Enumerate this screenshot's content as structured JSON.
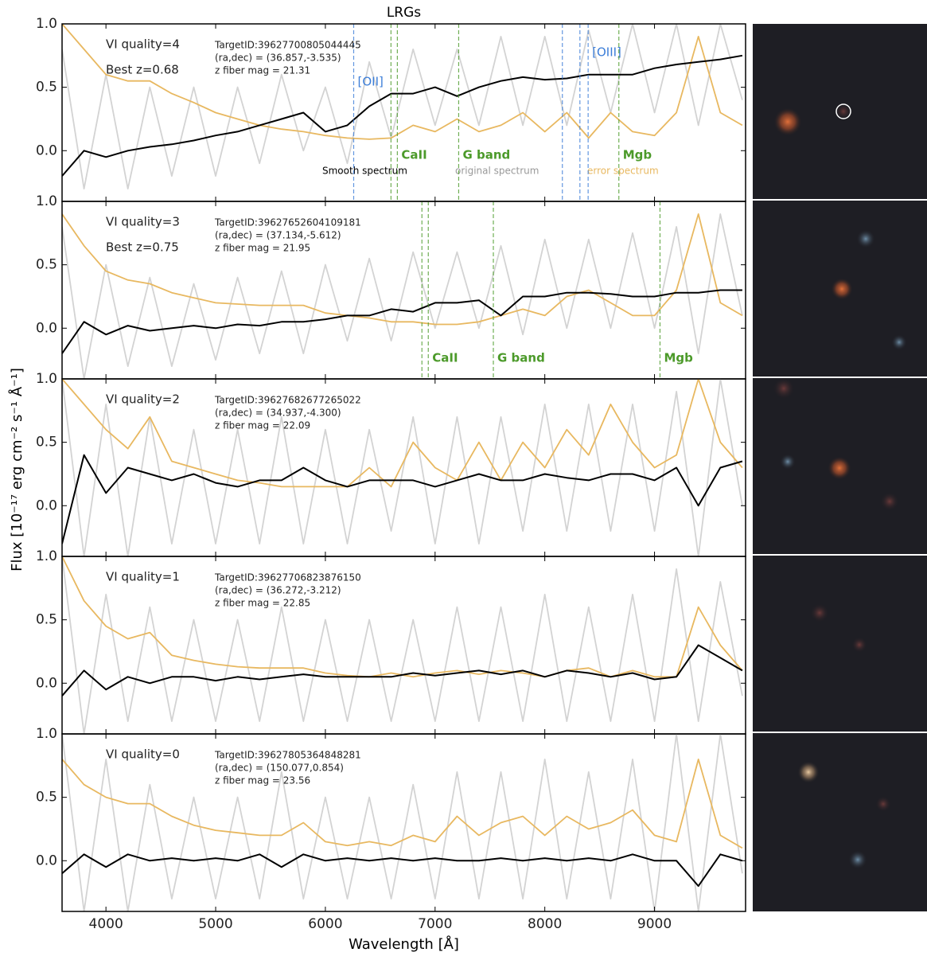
{
  "chart_data": [
    {
      "type": "line",
      "title": "LRGs",
      "labels": [
        "VI quality=4",
        "Best z=0.68"
      ],
      "target": [
        "TargetID:39627700805044445",
        "(ra,dec) = (36.857,-3.535)",
        "z fiber mag = 21.31"
      ],
      "x": [
        3600,
        3800,
        4000,
        4200,
        4400,
        4600,
        4800,
        5000,
        5200,
        5400,
        5600,
        5800,
        6000,
        6200,
        6400,
        6600,
        6800,
        7000,
        7200,
        7400,
        7600,
        7800,
        8000,
        8200,
        8400,
        8600,
        8800,
        9000,
        9200,
        9400,
        9600,
        9800
      ],
      "xlim": [
        3600,
        9830
      ],
      "xticks": [
        4000,
        5000,
        6000,
        7000,
        8000,
        9000
      ],
      "ylim": [
        -0.4,
        1.0
      ],
      "yticks": [
        {
          "value": 0,
          "label": "0.0"
        },
        {
          "value": 0.5,
          "label": "0.5"
        },
        {
          "value": 1,
          "label": "1.0"
        }
      ],
      "series": [
        {
          "name": "original spectrum",
          "color": "#d3d3d3",
          "values": [
            0.8,
            -0.3,
            0.6,
            -0.3,
            0.5,
            -0.2,
            0.5,
            -0.2,
            0.5,
            -0.1,
            0.6,
            0.0,
            0.5,
            -0.1,
            0.7,
            0.1,
            0.8,
            0.2,
            0.8,
            0.2,
            0.9,
            0.2,
            0.9,
            0.2,
            0.95,
            0.3,
            1.0,
            0.3,
            1.0,
            0.2,
            1.0,
            0.4
          ]
        },
        {
          "name": "error spectrum",
          "color": "#e8b860",
          "values": [
            1.0,
            0.8,
            0.6,
            0.55,
            0.55,
            0.45,
            0.38,
            0.3,
            0.25,
            0.2,
            0.17,
            0.15,
            0.12,
            0.1,
            0.09,
            0.1,
            0.2,
            0.15,
            0.25,
            0.15,
            0.2,
            0.3,
            0.15,
            0.3,
            0.1,
            0.3,
            0.15,
            0.12,
            0.3,
            0.9,
            0.3,
            0.2
          ]
        },
        {
          "name": "Smooth spectrum",
          "color": "#000000",
          "values": [
            -0.2,
            0.0,
            -0.05,
            0.0,
            0.03,
            0.05,
            0.08,
            0.12,
            0.15,
            0.2,
            0.25,
            0.3,
            0.15,
            0.2,
            0.35,
            0.45,
            0.45,
            0.5,
            0.43,
            0.5,
            0.55,
            0.58,
            0.56,
            0.57,
            0.6,
            0.6,
            0.6,
            0.65,
            0.68,
            0.7,
            0.72,
            0.75
          ]
        }
      ],
      "lines": [
        {
          "label": "[OII]",
          "color": "#3b7dd8",
          "x": [
            6258
          ]
        },
        {
          "label": "CaII",
          "color": "#4c9a2a",
          "x": [
            6598,
            6656
          ]
        },
        {
          "label": "G band",
          "color": "#4c9a2a",
          "x": [
            7215
          ]
        },
        {
          "label": "[OIII]",
          "color": "#3b7dd8",
          "x": [
            8160,
            8320,
            8395
          ]
        },
        {
          "label": "Mgb",
          "color": "#4c9a2a",
          "x": [
            8675
          ]
        }
      ]
    },
    {
      "type": "line",
      "labels": [
        "VI quality=3",
        "Best z=0.75"
      ],
      "target": [
        "TargetID:39627652604109181",
        "(ra,dec) = (37.134,-5.612)",
        "z fiber mag = 21.95"
      ],
      "x": [
        3600,
        3800,
        4000,
        4200,
        4400,
        4600,
        4800,
        5000,
        5200,
        5400,
        5600,
        5800,
        6000,
        6200,
        6400,
        6600,
        6800,
        7000,
        7200,
        7400,
        7600,
        7800,
        8000,
        8200,
        8400,
        8600,
        8800,
        9000,
        9200,
        9400,
        9600,
        9800
      ],
      "xlim": [
        3600,
        9830
      ],
      "xticks": [
        4000,
        5000,
        6000,
        7000,
        8000,
        9000
      ],
      "ylim": [
        -0.4,
        1.0
      ],
      "yticks": [
        {
          "value": 0,
          "label": "0.0"
        },
        {
          "value": 0.5,
          "label": "0.5"
        },
        {
          "value": 1,
          "label": "1.0"
        }
      ],
      "series": [
        {
          "color": "#d3d3d3",
          "values": [
            0.8,
            -0.4,
            0.5,
            -0.3,
            0.4,
            -0.3,
            0.35,
            -0.25,
            0.4,
            -0.2,
            0.45,
            -0.2,
            0.5,
            -0.1,
            0.55,
            -0.1,
            0.6,
            0.0,
            0.6,
            0.0,
            0.65,
            -0.05,
            0.7,
            0.0,
            0.7,
            0.0,
            0.75,
            0.0,
            0.8,
            -0.2,
            0.9,
            0.1
          ]
        },
        {
          "color": "#e8b860",
          "values": [
            0.9,
            0.65,
            0.45,
            0.38,
            0.35,
            0.28,
            0.24,
            0.2,
            0.19,
            0.18,
            0.18,
            0.18,
            0.12,
            0.1,
            0.08,
            0.05,
            0.05,
            0.03,
            0.03,
            0.05,
            0.1,
            0.15,
            0.1,
            0.25,
            0.3,
            0.2,
            0.1,
            0.1,
            0.3,
            0.9,
            0.2,
            0.1
          ]
        },
        {
          "color": "#000000",
          "values": [
            -0.2,
            0.05,
            -0.05,
            0.02,
            -0.02,
            0.0,
            0.02,
            0.0,
            0.03,
            0.02,
            0.05,
            0.05,
            0.07,
            0.1,
            0.1,
            0.15,
            0.13,
            0.2,
            0.2,
            0.22,
            0.1,
            0.25,
            0.25,
            0.28,
            0.28,
            0.27,
            0.25,
            0.25,
            0.28,
            0.28,
            0.3,
            0.3
          ]
        }
      ],
      "lines": [
        {
          "label": "CaII",
          "color": "#4c9a2a",
          "x": [
            6880,
            6938
          ]
        },
        {
          "label": "G band",
          "color": "#4c9a2a",
          "x": [
            7531
          ]
        },
        {
          "label": "Mgb",
          "color": "#4c9a2a",
          "x": [
            9050
          ]
        }
      ]
    },
    {
      "type": "line",
      "ylabel": "Flux [10⁻¹⁷ erg cm⁻² s⁻¹ Å⁻¹]",
      "labels": [
        "VI quality=2"
      ],
      "target": [
        "TargetID:39627682677265022",
        "(ra,dec) = (34.937,-4.300)",
        "z fiber mag = 22.09"
      ],
      "x": [
        3600,
        3800,
        4000,
        4200,
        4400,
        4600,
        4800,
        5000,
        5200,
        5400,
        5600,
        5800,
        6000,
        6200,
        6400,
        6600,
        6800,
        7000,
        7200,
        7400,
        7600,
        7800,
        8000,
        8200,
        8400,
        8600,
        8800,
        9000,
        9200,
        9400,
        9600,
        9800
      ],
      "xlim": [
        3600,
        9830
      ],
      "xticks": [
        4000,
        5000,
        6000,
        7000,
        8000,
        9000
      ],
      "ylim": [
        -0.4,
        1.0
      ],
      "yticks": [
        {
          "value": 0,
          "label": "0.0"
        },
        {
          "value": 0.5,
          "label": "0.5"
        },
        {
          "value": 1,
          "label": "1.0"
        }
      ],
      "series": [
        {
          "color": "#d3d3d3",
          "values": [
            1.0,
            -0.4,
            0.8,
            -0.4,
            0.7,
            -0.3,
            0.6,
            -0.3,
            0.6,
            -0.3,
            0.7,
            -0.3,
            0.6,
            -0.3,
            0.6,
            -0.2,
            0.7,
            -0.3,
            0.7,
            -0.3,
            0.7,
            -0.2,
            0.8,
            -0.2,
            0.8,
            -0.2,
            0.8,
            -0.2,
            0.9,
            -0.4,
            1.0,
            0.0
          ]
        },
        {
          "color": "#e8b860",
          "values": [
            1.0,
            0.8,
            0.6,
            0.45,
            0.7,
            0.35,
            0.3,
            0.25,
            0.2,
            0.18,
            0.15,
            0.15,
            0.15,
            0.15,
            0.3,
            0.15,
            0.5,
            0.3,
            0.2,
            0.5,
            0.2,
            0.5,
            0.3,
            0.6,
            0.4,
            0.8,
            0.5,
            0.3,
            0.4,
            1.0,
            0.5,
            0.3
          ]
        },
        {
          "color": "#000000",
          "values": [
            -0.3,
            0.4,
            0.1,
            0.3,
            0.25,
            0.2,
            0.25,
            0.18,
            0.15,
            0.2,
            0.2,
            0.3,
            0.2,
            0.15,
            0.2,
            0.2,
            0.2,
            0.15,
            0.2,
            0.25,
            0.2,
            0.2,
            0.25,
            0.22,
            0.2,
            0.25,
            0.25,
            0.2,
            0.3,
            0.0,
            0.3,
            0.35
          ]
        }
      ]
    },
    {
      "type": "line",
      "labels": [
        "VI quality=1"
      ],
      "target": [
        "TargetID:39627706823876150",
        "(ra,dec) = (36.272,-3.212)",
        "z fiber mag = 22.85"
      ],
      "x": [
        3600,
        3800,
        4000,
        4200,
        4400,
        4600,
        4800,
        5000,
        5200,
        5400,
        5600,
        5800,
        6000,
        6200,
        6400,
        6600,
        6800,
        7000,
        7200,
        7400,
        7600,
        7800,
        8000,
        8200,
        8400,
        8600,
        8800,
        9000,
        9200,
        9400,
        9600,
        9800
      ],
      "xlim": [
        3600,
        9830
      ],
      "xticks": [
        4000,
        5000,
        6000,
        7000,
        8000,
        9000
      ],
      "ylim": [
        -0.4,
        1.0
      ],
      "yticks": [
        {
          "value": 0,
          "label": "0.0"
        },
        {
          "value": 0.5,
          "label": "0.5"
        },
        {
          "value": 1,
          "label": "1.0"
        }
      ],
      "series": [
        {
          "color": "#d3d3d3",
          "values": [
            1.0,
            -0.4,
            0.7,
            -0.3,
            0.6,
            -0.3,
            0.5,
            -0.3,
            0.5,
            -0.3,
            0.6,
            -0.3,
            0.5,
            -0.3,
            0.5,
            -0.3,
            0.5,
            -0.3,
            0.6,
            -0.3,
            0.6,
            -0.3,
            0.7,
            -0.3,
            0.6,
            -0.3,
            0.7,
            -0.3,
            0.9,
            -0.3,
            0.8,
            -0.1
          ]
        },
        {
          "color": "#e8b860",
          "values": [
            1.0,
            0.65,
            0.45,
            0.35,
            0.4,
            0.22,
            0.18,
            0.15,
            0.13,
            0.12,
            0.12,
            0.12,
            0.08,
            0.06,
            0.05,
            0.08,
            0.05,
            0.08,
            0.1,
            0.07,
            0.1,
            0.08,
            0.05,
            0.1,
            0.12,
            0.05,
            0.1,
            0.05,
            0.05,
            0.6,
            0.3,
            0.1
          ]
        },
        {
          "color": "#000000",
          "values": [
            -0.1,
            0.1,
            -0.05,
            0.05,
            0.0,
            0.05,
            0.05,
            0.02,
            0.05,
            0.03,
            0.05,
            0.07,
            0.05,
            0.05,
            0.05,
            0.05,
            0.08,
            0.06,
            0.08,
            0.1,
            0.07,
            0.1,
            0.05,
            0.1,
            0.08,
            0.05,
            0.08,
            0.03,
            0.05,
            0.3,
            0.2,
            0.1
          ]
        }
      ]
    },
    {
      "type": "line",
      "xlabel": "Wavelength [Å]",
      "labels": [
        "VI quality=0"
      ],
      "target": [
        "TargetID:39627805364848281",
        "(ra,dec) = (150.077,0.854)",
        "z fiber mag = 23.56"
      ],
      "x": [
        3600,
        3800,
        4000,
        4200,
        4400,
        4600,
        4800,
        5000,
        5200,
        5400,
        5600,
        5800,
        6000,
        6200,
        6400,
        6600,
        6800,
        7000,
        7200,
        7400,
        7600,
        7800,
        8000,
        8200,
        8400,
        8600,
        8800,
        9000,
        9200,
        9400,
        9600,
        9800
      ],
      "xlim": [
        3600,
        9830
      ],
      "xticks": [
        4000,
        5000,
        6000,
        7000,
        8000,
        9000
      ],
      "ylim": [
        -0.4,
        1.0
      ],
      "yticks": [
        {
          "value": 0,
          "label": "0.0"
        },
        {
          "value": 0.5,
          "label": "0.5"
        },
        {
          "value": 1,
          "label": "1.0"
        }
      ],
      "series": [
        {
          "color": "#d3d3d3",
          "values": [
            1.0,
            -0.4,
            0.8,
            -0.4,
            0.6,
            -0.3,
            0.5,
            -0.3,
            0.5,
            -0.3,
            0.7,
            -0.3,
            0.5,
            -0.3,
            0.5,
            -0.3,
            0.6,
            -0.3,
            0.7,
            -0.3,
            0.7,
            -0.3,
            0.8,
            -0.3,
            0.7,
            -0.3,
            0.8,
            -0.4,
            1.0,
            -0.4,
            1.0,
            -0.1
          ]
        },
        {
          "color": "#e8b860",
          "values": [
            0.8,
            0.6,
            0.5,
            0.45,
            0.45,
            0.35,
            0.28,
            0.24,
            0.22,
            0.2,
            0.2,
            0.3,
            0.15,
            0.12,
            0.15,
            0.12,
            0.2,
            0.15,
            0.35,
            0.2,
            0.3,
            0.35,
            0.2,
            0.35,
            0.25,
            0.3,
            0.4,
            0.2,
            0.15,
            0.8,
            0.2,
            0.1
          ]
        },
        {
          "color": "#000000",
          "values": [
            -0.1,
            0.05,
            -0.05,
            0.05,
            0.0,
            0.02,
            0.0,
            0.02,
            0.0,
            0.05,
            -0.05,
            0.05,
            0.0,
            0.02,
            0.0,
            0.02,
            0.0,
            0.02,
            0.0,
            0.0,
            0.02,
            0.0,
            0.02,
            0.0,
            0.02,
            0.0,
            0.05,
            0.0,
            0.0,
            -0.2,
            0.05,
            0.0
          ]
        }
      ]
    }
  ]
}
